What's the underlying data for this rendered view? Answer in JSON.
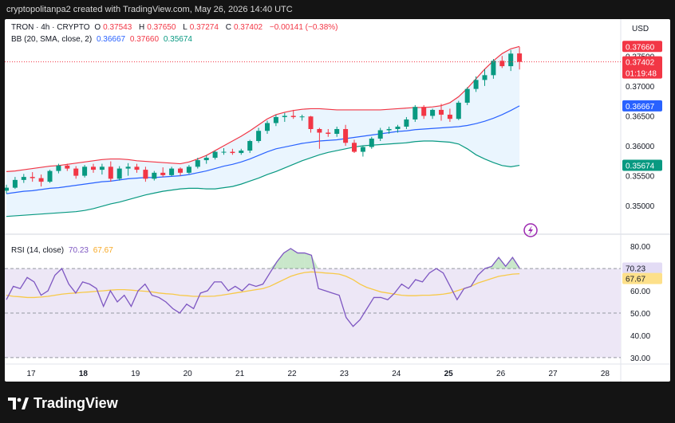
{
  "header": {
    "credit": "cryptopolitanpa2 created with TradingView.com, May 26, 2026 14:40 UTC"
  },
  "footer": {
    "brand": "TradingView"
  },
  "legend_main": {
    "symbol": "TRON · 4h · CRYPTO",
    "o_label": "O",
    "o": "0.37543",
    "h_label": "H",
    "h": "0.37650",
    "l_label": "L",
    "l": "0.37274",
    "c_label": "C",
    "c": "0.37402",
    "change": "−0.00141 (−0.38%)"
  },
  "legend_bb": {
    "name": "BB (20, SMA, close, 2)",
    "basis": "0.36667",
    "upper": "0.37660",
    "lower": "0.35674"
  },
  "legend_rsi": {
    "name": "RSI (14, close)",
    "rsi": "70.23",
    "ma": "67.67"
  },
  "colors": {
    "up": "#089981",
    "down": "#f23645",
    "bb_upper": "#f23645",
    "bb_basis": "#2962ff",
    "bb_lower": "#089981",
    "bb_fill": "#e3f2fd",
    "rsi_line": "#7e57c2",
    "rsi_ma": "#f7c948",
    "rsi_band": "#ede7f6"
  },
  "chart_data": [
    {
      "type": "candlestick",
      "title": "TRON · 4h · CRYPTO",
      "currency": "USD",
      "ylim": [
        0.3455,
        0.3785
      ],
      "y_ticks": [
        "0.35000",
        "0.35500",
        "0.36000",
        "0.36500",
        "0.37000",
        "0.37500"
      ],
      "x_ticks": [
        "17",
        "18",
        "19",
        "20",
        "21",
        "22",
        "23",
        "24",
        "25",
        "26",
        "27",
        "28"
      ],
      "x_tick_positions": [
        0,
        6,
        12,
        18,
        24,
        30,
        36,
        42,
        48,
        54,
        60,
        66
      ],
      "price_labels": {
        "bb_upper": "0.37660",
        "last": "0.37402",
        "countdown": "01:19:48",
        "bb_basis": "0.36667",
        "bb_lower": "0.35674"
      },
      "candles": [
        [
          0.3525,
          0.3535,
          0.352,
          0.353
        ],
        [
          0.353,
          0.3548,
          0.3528,
          0.3543
        ],
        [
          0.3543,
          0.3553,
          0.3538,
          0.3548
        ],
        [
          0.3548,
          0.3556,
          0.354,
          0.3546
        ],
        [
          0.3546,
          0.3552,
          0.3532,
          0.354
        ],
        [
          0.354,
          0.356,
          0.3538,
          0.3558
        ],
        [
          0.3558,
          0.357,
          0.3554,
          0.3567
        ],
        [
          0.3567,
          0.357,
          0.3558,
          0.3562
        ],
        [
          0.3562,
          0.3566,
          0.3545,
          0.355
        ],
        [
          0.355,
          0.3568,
          0.3547,
          0.3565
        ],
        [
          0.3565,
          0.357,
          0.3555,
          0.356
        ],
        [
          0.356,
          0.357,
          0.3552,
          0.3565
        ],
        [
          0.3565,
          0.3574,
          0.354,
          0.3545
        ],
        [
          0.3545,
          0.3566,
          0.3542,
          0.3562
        ],
        [
          0.3562,
          0.3571,
          0.355,
          0.3565
        ],
        [
          0.3565,
          0.357,
          0.3555,
          0.356
        ],
        [
          0.356,
          0.3565,
          0.354,
          0.3545
        ],
        [
          0.3545,
          0.3558,
          0.3542,
          0.3555
        ],
        [
          0.3555,
          0.3564,
          0.3548,
          0.3551
        ],
        [
          0.3551,
          0.3565,
          0.3549,
          0.3562
        ],
        [
          0.3562,
          0.3564,
          0.355,
          0.3555
        ],
        [
          0.3555,
          0.3568,
          0.3553,
          0.3565
        ],
        [
          0.3565,
          0.358,
          0.3562,
          0.3576
        ],
        [
          0.3576,
          0.3584,
          0.357,
          0.358
        ],
        [
          0.358,
          0.3592,
          0.3577,
          0.359
        ],
        [
          0.359,
          0.3596,
          0.3585,
          0.359
        ],
        [
          0.359,
          0.3595,
          0.3585,
          0.3588
        ],
        [
          0.3588,
          0.3595,
          0.3585,
          0.3592
        ],
        [
          0.3592,
          0.361,
          0.3588,
          0.3608
        ],
        [
          0.3608,
          0.363,
          0.3605,
          0.3625
        ],
        [
          0.3625,
          0.3642,
          0.362,
          0.3638
        ],
        [
          0.3638,
          0.3652,
          0.3633,
          0.3648
        ],
        [
          0.3648,
          0.3655,
          0.364,
          0.365
        ],
        [
          0.365,
          0.366,
          0.3645,
          0.3648
        ],
        [
          0.3648,
          0.3652,
          0.3642,
          0.3649
        ],
        [
          0.3649,
          0.365,
          0.3622,
          0.3628
        ],
        [
          0.3628,
          0.363,
          0.3595,
          0.3622
        ],
        [
          0.3622,
          0.3628,
          0.3615,
          0.362
        ],
        [
          0.362,
          0.3632,
          0.3615,
          0.3628
        ],
        [
          0.3628,
          0.3635,
          0.36,
          0.3605
        ],
        [
          0.3605,
          0.361,
          0.3588,
          0.359
        ],
        [
          0.359,
          0.36,
          0.3582,
          0.3598
        ],
        [
          0.3598,
          0.3615,
          0.3595,
          0.3612
        ],
        [
          0.3612,
          0.363,
          0.3608,
          0.3626
        ],
        [
          0.3626,
          0.3632,
          0.362,
          0.3628
        ],
        [
          0.3628,
          0.3635,
          0.3622,
          0.3632
        ],
        [
          0.3632,
          0.3648,
          0.3628,
          0.3644
        ],
        [
          0.3644,
          0.3668,
          0.364,
          0.3665
        ],
        [
          0.3665,
          0.3668,
          0.3645,
          0.365
        ],
        [
          0.365,
          0.3662,
          0.3645,
          0.366
        ],
        [
          0.366,
          0.367,
          0.3642,
          0.3652
        ],
        [
          0.3652,
          0.3662,
          0.364,
          0.3645
        ],
        [
          0.3645,
          0.3675,
          0.3643,
          0.3672
        ],
        [
          0.3672,
          0.3698,
          0.3668,
          0.3695
        ],
        [
          0.3695,
          0.3716,
          0.369,
          0.371
        ],
        [
          0.371,
          0.3728,
          0.37,
          0.3718
        ],
        [
          0.3718,
          0.3745,
          0.3712,
          0.3742
        ],
        [
          0.3742,
          0.375,
          0.373,
          0.3733
        ],
        [
          0.3733,
          0.376,
          0.3725,
          0.3754
        ],
        [
          0.37543,
          0.3765,
          0.37274,
          0.37402
        ]
      ],
      "bb_upper": [
        0.3557,
        0.3558,
        0.356,
        0.3562,
        0.3564,
        0.3566,
        0.3567,
        0.3569,
        0.3571,
        0.3573,
        0.3575,
        0.3577,
        0.3578,
        0.3578,
        0.3577,
        0.3575,
        0.3574,
        0.3573,
        0.3572,
        0.3571,
        0.357,
        0.3573,
        0.3578,
        0.3584,
        0.3592,
        0.36,
        0.3608,
        0.3616,
        0.3625,
        0.3635,
        0.3645,
        0.3652,
        0.3656,
        0.3659,
        0.3661,
        0.3662,
        0.3662,
        0.3661,
        0.366,
        0.366,
        0.366,
        0.366,
        0.366,
        0.366,
        0.3661,
        0.3662,
        0.3663,
        0.3664,
        0.3664,
        0.3665,
        0.3667,
        0.3672,
        0.3682,
        0.3696,
        0.3712,
        0.3728,
        0.3742,
        0.3754,
        0.3762,
        0.3766
      ],
      "bb_basis": [
        0.352,
        0.3522,
        0.3524,
        0.3525,
        0.3527,
        0.3529,
        0.353,
        0.3532,
        0.3534,
        0.3536,
        0.3538,
        0.354,
        0.3541,
        0.3543,
        0.3545,
        0.3546,
        0.3547,
        0.3547,
        0.3548,
        0.3549,
        0.355,
        0.3552,
        0.3555,
        0.3558,
        0.3562,
        0.3566,
        0.3569,
        0.3573,
        0.3578,
        0.3584,
        0.359,
        0.3595,
        0.3598,
        0.3601,
        0.3604,
        0.3606,
        0.3608,
        0.3609,
        0.361,
        0.3612,
        0.3614,
        0.3616,
        0.3618,
        0.362,
        0.3622,
        0.3624,
        0.3625,
        0.3627,
        0.3628,
        0.3629,
        0.363,
        0.3631,
        0.3632,
        0.3634,
        0.3637,
        0.3641,
        0.3646,
        0.3652,
        0.3659,
        0.36667
      ],
      "bb_lower": [
        0.3482,
        0.3483,
        0.3484,
        0.3485,
        0.3486,
        0.3487,
        0.3488,
        0.3489,
        0.349,
        0.3492,
        0.3495,
        0.3499,
        0.3503,
        0.3506,
        0.351,
        0.3514,
        0.3518,
        0.3521,
        0.3524,
        0.3526,
        0.3528,
        0.3529,
        0.3529,
        0.3528,
        0.3528,
        0.353,
        0.3532,
        0.3536,
        0.3541,
        0.3546,
        0.3552,
        0.3557,
        0.3563,
        0.3569,
        0.3575,
        0.358,
        0.3585,
        0.3589,
        0.3592,
        0.3595,
        0.3598,
        0.36,
        0.3601,
        0.3602,
        0.3603,
        0.3604,
        0.3605,
        0.3607,
        0.3608,
        0.3608,
        0.3607,
        0.3606,
        0.3603,
        0.3595,
        0.3585,
        0.3578,
        0.3572,
        0.3567,
        0.3565,
        0.35674
      ]
    },
    {
      "type": "line",
      "title": "RSI (14, close)",
      "ylim": [
        26,
        84
      ],
      "y_ticks": [
        "80.00",
        "70.00",
        "60.00",
        "50.00",
        "40.00",
        "30.00"
      ],
      "y_tick_values": [
        80,
        70,
        60,
        50,
        40,
        30
      ],
      "band": [
        30,
        70
      ],
      "price_labels": {
        "rsi": "70.23",
        "ma": "67.67"
      },
      "series": [
        {
          "key": "rsi",
          "values": [
            56,
            62,
            61,
            66,
            64,
            58,
            60,
            67,
            70,
            63,
            59,
            64,
            63,
            61,
            53,
            60,
            55,
            58,
            53,
            60,
            63,
            58,
            57,
            55,
            52,
            50,
            54,
            52,
            59,
            60,
            64,
            64,
            60,
            62,
            60,
            63,
            62,
            63,
            68,
            73,
            77,
            79,
            77,
            77,
            76,
            61,
            60,
            59,
            58,
            48,
            44,
            47,
            52,
            57,
            57,
            56,
            59,
            63,
            61,
            65,
            64,
            68,
            70,
            68,
            62,
            56,
            61,
            62,
            67,
            70,
            71,
            75,
            71,
            75,
            70.23
          ]
        },
        {
          "key": "ma",
          "values": [
            58,
            57.5,
            57.3,
            57,
            57,
            57.2,
            57.5,
            58,
            58.5,
            58.8,
            59,
            59.3,
            59.5,
            59.8,
            60,
            60.3,
            60.5,
            60.5,
            60.3,
            60,
            59.8,
            59.5,
            59,
            58.7,
            58.5,
            58,
            57.8,
            57.5,
            57.5,
            57.5,
            57.6,
            58,
            58.5,
            59,
            59.5,
            60,
            60.5,
            61,
            62,
            63.5,
            65,
            66.5,
            67.5,
            68.2,
            68.5,
            68.3,
            68,
            67.8,
            67.5,
            66.5,
            65,
            63,
            61.5,
            60.5,
            59.5,
            59,
            58.5,
            58,
            57.8,
            57.8,
            58,
            58,
            58.2,
            58.5,
            59,
            60,
            61,
            62,
            63.5,
            64.5,
            65.5,
            66.5,
            67,
            67.5,
            67.67
          ]
        }
      ]
    }
  ]
}
